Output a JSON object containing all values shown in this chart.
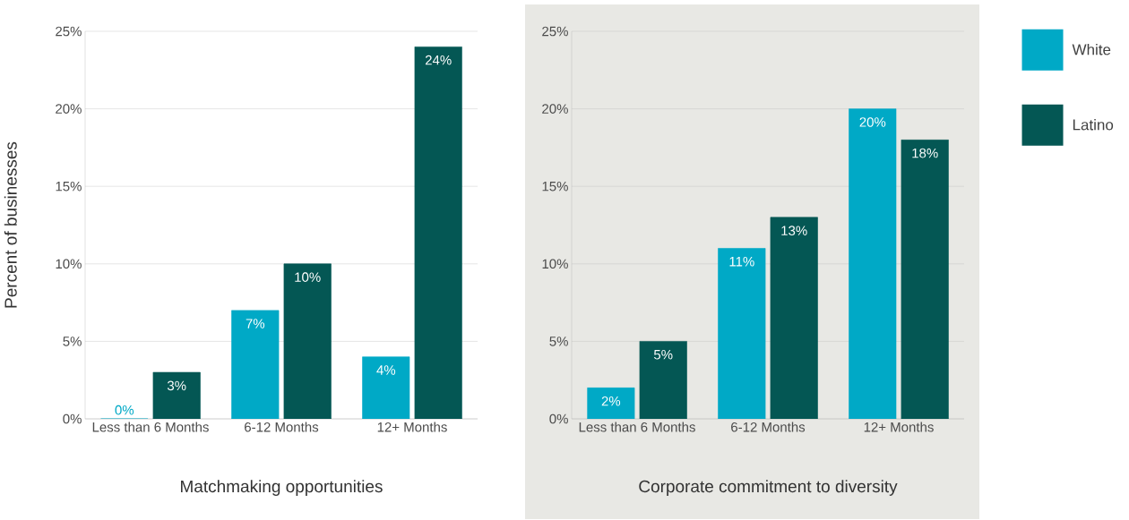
{
  "chart_data": [
    {
      "type": "bar",
      "xlabel": "Matchmaking opportunities",
      "ylabel": "Percent of businesses",
      "categories": [
        "Less than 6 Months",
        "6-12 Months",
        "12+ Months"
      ],
      "series": [
        {
          "color": "#00a9c6",
          "values": [
            0,
            7,
            4
          ],
          "value_labels": [
            "0%",
            "7%",
            "4%"
          ]
        },
        {
          "color": "#045754",
          "values": [
            3,
            10,
            24
          ],
          "value_labels": [
            "3%",
            "10%",
            "24%"
          ]
        }
      ],
      "ylim": [
        0,
        25
      ],
      "yticks": [
        {
          "value": 0,
          "label": "0%"
        },
        {
          "value": 5,
          "label": "5%"
        },
        {
          "value": 10,
          "label": "10%"
        },
        {
          "value": 15,
          "label": "15%"
        },
        {
          "value": 20,
          "label": "20%"
        },
        {
          "value": 25,
          "label": "25%"
        }
      ],
      "grid": "y"
    },
    {
      "type": "bar",
      "xlabel": "Corporate commitment to diversity",
      "categories": [
        "Less than 6 Months",
        "6-12 Months",
        "12+ Months"
      ],
      "series": [
        {
          "name": "White",
          "color": "#00a9c6",
          "values": [
            2,
            11,
            20
          ],
          "value_labels": [
            "2%",
            "11%",
            "20%"
          ]
        },
        {
          "name": "Latino",
          "color": "#045754",
          "values": [
            5,
            13,
            18
          ],
          "value_labels": [
            "5%",
            "13%",
            "18%"
          ]
        }
      ],
      "ylim": [
        0,
        25
      ],
      "yticks": [
        {
          "value": 0,
          "label": "0%"
        },
        {
          "value": 5,
          "label": "5%"
        },
        {
          "value": 10,
          "label": "10%"
        },
        {
          "value": 15,
          "label": "15%"
        },
        {
          "value": 20,
          "label": "20%"
        },
        {
          "value": 25,
          "label": "25%"
        }
      ],
      "grid": "y",
      "legend": "right"
    }
  ]
}
